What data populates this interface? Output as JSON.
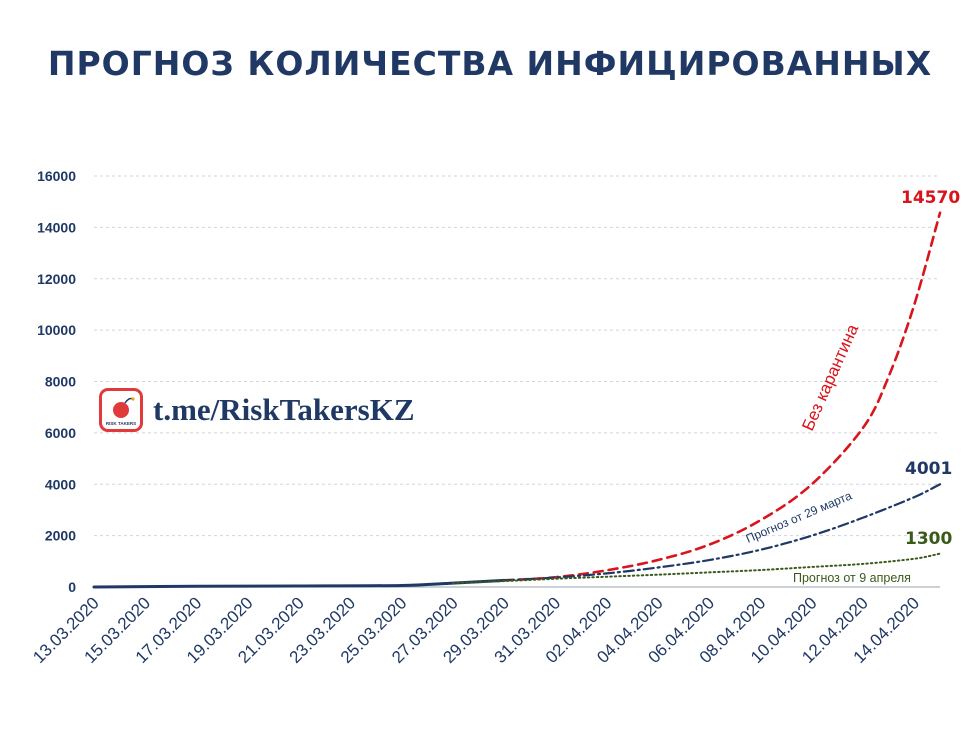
{
  "title": "ПРОГНОЗ КОЛИЧЕСТВА ИНФИЦИРОВАННЫХ",
  "watermark": {
    "text": "t.me/RiskTakersKZ",
    "logo_text": "RISK TAKERS",
    "icon": "bomb-icon"
  },
  "colors": {
    "title": "#1f3864",
    "red": "#d9141b",
    "navy": "#1f3864",
    "green": "#3a5a1a",
    "grid": "#cfd5dd"
  },
  "chart_data": {
    "type": "line",
    "title": "ПРОГНОЗ КОЛИЧЕСТВА ИНФИЦИРОВАННЫХ",
    "xlabel": "",
    "ylabel": "",
    "ylim": [
      0,
      16000
    ],
    "yticks": [
      "0",
      "2000",
      "4000",
      "6000",
      "8000",
      "10000",
      "12000",
      "14000",
      "16000"
    ],
    "x_start": "13.03.2020",
    "x_end": "15.04.2020",
    "x_ticks": [
      "13.03.2020",
      "15.03.2020",
      "17.03.2020",
      "19.03.2020",
      "21.03.2020",
      "23.03.2020",
      "25.03.2020",
      "27.03.2020",
      "29.03.2020",
      "31.03.2020",
      "02.04.2020",
      "04.04.2020",
      "06.04.2020",
      "08.04.2020",
      "10.04.2020",
      "12.04.2020",
      "14.04.2020"
    ],
    "grid": true,
    "legend": "none",
    "series": [
      {
        "name": "",
        "style": "solid",
        "color": "#1f3864",
        "dates": [
          "13.03.2020",
          "17.03.2020",
          "21.03.2020",
          "25.03.2020",
          "27.03.2020",
          "29.03.2020"
        ],
        "values": [
          0,
          30,
          40,
          60,
          150,
          260
        ]
      },
      {
        "name": "Без карантина",
        "style": "dashed",
        "color": "#d9141b",
        "dates": [
          "29.03.2020",
          "31.03.2020",
          "02.04.2020",
          "04.04.2020",
          "06.04.2020",
          "08.04.2020",
          "10.04.2020",
          "12.04.2020",
          "13.04.2020",
          "14.04.2020",
          "15.04.2020"
        ],
        "values": [
          260,
          380,
          650,
          1050,
          1650,
          2600,
          4000,
          6200,
          8200,
          11000,
          14570
        ]
      },
      {
        "name": "Прогноз от 29 марта",
        "style": "dashdot",
        "color": "#1f3864",
        "dates": [
          "29.03.2020",
          "31.03.2020",
          "02.04.2020",
          "04.04.2020",
          "06.04.2020",
          "08.04.2020",
          "10.04.2020",
          "12.04.2020",
          "14.04.2020",
          "15.04.2020"
        ],
        "values": [
          260,
          370,
          530,
          760,
          1050,
          1450,
          2000,
          2700,
          3500,
          4001
        ]
      },
      {
        "name": "Прогноз от 9 апреля",
        "style": "dotted",
        "color": "#3a5a1a",
        "dates": [
          "27.03.2020",
          "29.03.2020",
          "31.03.2020",
          "02.04.2020",
          "04.04.2020",
          "06.04.2020",
          "08.04.2020",
          "10.04.2020",
          "12.04.2020",
          "14.04.2020",
          "15.04.2020"
        ],
        "values": [
          150,
          230,
          320,
          400,
          480,
          570,
          660,
          780,
          900,
          1100,
          1300
        ]
      }
    ],
    "annotations": [
      {
        "text": "14570",
        "color": "#d9141b"
      },
      {
        "text": "4001",
        "color": "#1f3864"
      },
      {
        "text": "1300",
        "color": "#3a5a1a"
      }
    ]
  }
}
